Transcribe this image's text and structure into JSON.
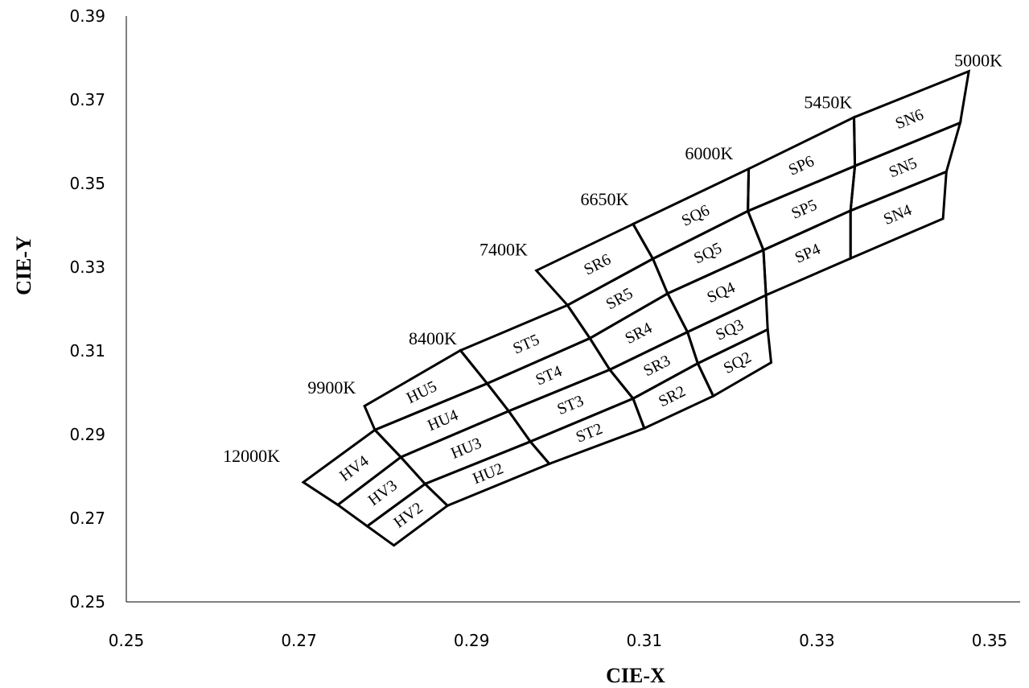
{
  "chart_data": {
    "type": "line",
    "title": "",
    "xlabel": "CIE-X",
    "ylabel": "CIE-Y",
    "xlim": [
      0.25,
      0.35
    ],
    "ylim": [
      0.25,
      0.39
    ],
    "xticks": [
      "0.25",
      "0.27",
      "0.29",
      "0.31",
      "0.33",
      "0.35"
    ],
    "yticks": [
      "0.25",
      "0.27",
      "0.29",
      "0.31",
      "0.33",
      "0.35",
      "0.37",
      "0.39"
    ],
    "grid": false,
    "legend": "none",
    "line_color": "#000000",
    "cct_labels": [
      {
        "text": "12000K",
        "x": 0.2645,
        "y": 0.2835
      },
      {
        "text": "9900K",
        "x": 0.2738,
        "y": 0.2998
      },
      {
        "text": "8400K",
        "x": 0.2855,
        "y": 0.3115
      },
      {
        "text": "7400K",
        "x": 0.2937,
        "y": 0.3328
      },
      {
        "text": "6650K",
        "x": 0.3054,
        "y": 0.3448
      },
      {
        "text": "6000K",
        "x": 0.3175,
        "y": 0.3558
      },
      {
        "text": "5450K",
        "x": 0.3313,
        "y": 0.368
      },
      {
        "text": "5000K",
        "x": 0.3487,
        "y": 0.378
      }
    ],
    "bins": [
      {
        "name": "HV4",
        "points": [
          [
            0.2705,
            0.2786
          ],
          [
            0.2788,
            0.2911
          ],
          [
            0.2818,
            0.2846
          ],
          [
            0.2745,
            0.2732
          ]
        ]
      },
      {
        "name": "HV3",
        "points": [
          [
            0.2745,
            0.2732
          ],
          [
            0.2818,
            0.2846
          ],
          [
            0.2846,
            0.2782
          ],
          [
            0.2779,
            0.2681
          ]
        ]
      },
      {
        "name": "HV2",
        "points": [
          [
            0.2779,
            0.2681
          ],
          [
            0.2846,
            0.2782
          ],
          [
            0.2872,
            0.273
          ],
          [
            0.281,
            0.2635
          ]
        ]
      },
      {
        "name": "HU5",
        "points": [
          [
            0.2776,
            0.2968
          ],
          [
            0.2887,
            0.3101
          ],
          [
            0.2918,
            0.3022
          ],
          [
            0.2788,
            0.2911
          ]
        ]
      },
      {
        "name": "HU4",
        "points": [
          [
            0.2788,
            0.2911
          ],
          [
            0.2918,
            0.3022
          ],
          [
            0.2943,
            0.2956
          ],
          [
            0.2818,
            0.2846
          ]
        ]
      },
      {
        "name": "HU3",
        "points": [
          [
            0.2818,
            0.2846
          ],
          [
            0.2943,
            0.2956
          ],
          [
            0.2968,
            0.2883
          ],
          [
            0.2846,
            0.2782
          ]
        ]
      },
      {
        "name": "HU2",
        "points": [
          [
            0.2846,
            0.2782
          ],
          [
            0.2968,
            0.2883
          ],
          [
            0.299,
            0.283
          ],
          [
            0.2872,
            0.273
          ]
        ]
      },
      {
        "name": "ST5",
        "points": [
          [
            0.2887,
            0.3101
          ],
          [
            0.3011,
            0.3209
          ],
          [
            0.3037,
            0.313
          ],
          [
            0.2918,
            0.3022
          ]
        ]
      },
      {
        "name": "ST4",
        "points": [
          [
            0.2918,
            0.3022
          ],
          [
            0.3037,
            0.313
          ],
          [
            0.306,
            0.3055
          ],
          [
            0.2943,
            0.2956
          ]
        ]
      },
      {
        "name": "ST3",
        "points": [
          [
            0.2943,
            0.2956
          ],
          [
            0.306,
            0.3055
          ],
          [
            0.3087,
            0.2986
          ],
          [
            0.2968,
            0.2883
          ]
        ]
      },
      {
        "name": "ST2",
        "points": [
          [
            0.2968,
            0.2883
          ],
          [
            0.3087,
            0.2986
          ],
          [
            0.31,
            0.2915
          ],
          [
            0.299,
            0.283
          ]
        ]
      },
      {
        "name": "SR6",
        "points": [
          [
            0.2975,
            0.3292
          ],
          [
            0.3087,
            0.3403
          ],
          [
            0.311,
            0.332
          ],
          [
            0.3011,
            0.3209
          ]
        ]
      },
      {
        "name": "SR5",
        "points": [
          [
            0.3011,
            0.3209
          ],
          [
            0.311,
            0.332
          ],
          [
            0.3127,
            0.3237
          ],
          [
            0.3037,
            0.313
          ]
        ]
      },
      {
        "name": "SR4",
        "points": [
          [
            0.3037,
            0.313
          ],
          [
            0.3127,
            0.3237
          ],
          [
            0.315,
            0.3145
          ],
          [
            0.306,
            0.3055
          ]
        ]
      },
      {
        "name": "SR3",
        "points": [
          [
            0.306,
            0.3055
          ],
          [
            0.315,
            0.3145
          ],
          [
            0.3162,
            0.307
          ],
          [
            0.3087,
            0.2986
          ]
        ]
      },
      {
        "name": "SR2",
        "points": [
          [
            0.3087,
            0.2986
          ],
          [
            0.3162,
            0.307
          ],
          [
            0.318,
            0.2992
          ],
          [
            0.31,
            0.2915
          ]
        ]
      },
      {
        "name": "SQ6",
        "points": [
          [
            0.3087,
            0.3403
          ],
          [
            0.3221,
            0.3535
          ],
          [
            0.322,
            0.3434
          ],
          [
            0.311,
            0.332
          ]
        ]
      },
      {
        "name": "SQ5",
        "points": [
          [
            0.311,
            0.332
          ],
          [
            0.322,
            0.3434
          ],
          [
            0.3238,
            0.3341
          ],
          [
            0.3127,
            0.3237
          ]
        ]
      },
      {
        "name": "SQ4",
        "points": [
          [
            0.3127,
            0.3237
          ],
          [
            0.3238,
            0.3341
          ],
          [
            0.3241,
            0.3233
          ],
          [
            0.315,
            0.3145
          ]
        ]
      },
      {
        "name": "SQ3",
        "points": [
          [
            0.315,
            0.3145
          ],
          [
            0.3241,
            0.3233
          ],
          [
            0.3243,
            0.3151
          ],
          [
            0.3162,
            0.307
          ]
        ]
      },
      {
        "name": "SQ2",
        "points": [
          [
            0.3162,
            0.307
          ],
          [
            0.3243,
            0.3151
          ],
          [
            0.3247,
            0.3072
          ],
          [
            0.318,
            0.2992
          ]
        ]
      },
      {
        "name": "SP6",
        "points": [
          [
            0.3221,
            0.3535
          ],
          [
            0.3343,
            0.3658
          ],
          [
            0.3344,
            0.3542
          ],
          [
            0.322,
            0.3434
          ]
        ]
      },
      {
        "name": "SP5",
        "points": [
          [
            0.322,
            0.3434
          ],
          [
            0.3344,
            0.3542
          ],
          [
            0.3339,
            0.3435
          ],
          [
            0.3238,
            0.3341
          ]
        ]
      },
      {
        "name": "SP4",
        "points": [
          [
            0.3238,
            0.3341
          ],
          [
            0.3339,
            0.3435
          ],
          [
            0.3339,
            0.3321
          ],
          [
            0.3241,
            0.3233
          ]
        ]
      },
      {
        "name": "SN6",
        "points": [
          [
            0.3343,
            0.3658
          ],
          [
            0.3476,
            0.3768
          ],
          [
            0.3466,
            0.3645
          ],
          [
            0.3344,
            0.3542
          ]
        ]
      },
      {
        "name": "SN5",
        "points": [
          [
            0.3344,
            0.3542
          ],
          [
            0.3466,
            0.3645
          ],
          [
            0.345,
            0.3528
          ],
          [
            0.3339,
            0.3435
          ]
        ]
      },
      {
        "name": "SN4",
        "points": [
          [
            0.3339,
            0.3435
          ],
          [
            0.345,
            0.3528
          ],
          [
            0.3446,
            0.3416
          ],
          [
            0.3339,
            0.3321
          ]
        ]
      }
    ]
  }
}
